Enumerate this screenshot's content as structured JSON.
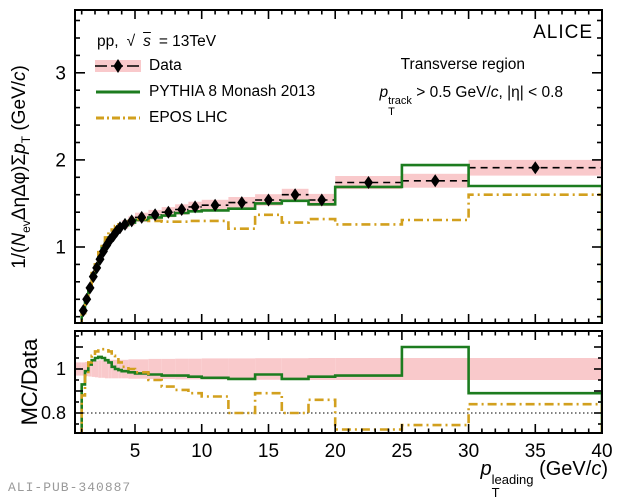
{
  "watermark": "ALI-PUB-340887",
  "annotations": {
    "experiment": "ALICE",
    "region": "Transverse region",
    "cut": {
      "p": "p",
      "sub": "T",
      "sup": "track",
      "rest": " > 0.5 GeV/",
      "c": "c",
      "eta": ", |η| < 0.8"
    }
  },
  "legend": {
    "collision_pre": "pp, ",
    "sqrt": "√",
    "s": "s",
    "collision_rest": " = 13TeV",
    "entries": [
      {
        "label": "Data",
        "type": "data"
      },
      {
        "label": "PYTHIA 8 Monash 2013",
        "type": "pythia"
      },
      {
        "label": "EPOS LHC",
        "type": "epos"
      }
    ]
  },
  "axes": {
    "ylabel": {
      "pre": "1/(",
      "N": "N",
      "ev": "ev",
      "mid": "ΔηΔφ)Σ",
      "p": "p",
      "T": "T",
      "unit": " (GeV/",
      "c": "c",
      "close": ")"
    },
    "ratio_ylabel": "MC/Data",
    "xlabel": {
      "p": "p",
      "sub": "T",
      "sup": "leading",
      "unit": " (GeV/",
      "c": "c",
      "close": ")"
    }
  },
  "colors": {
    "data": "#000000",
    "band": "#f9c9cb",
    "pythia": "#1c7c1f",
    "epos": "#d2a01e"
  },
  "chart_data": {
    "type": "line",
    "title": "",
    "xlabel": "pT_leading (GeV/c)",
    "ylabel_top": "1/(Nev DeltaEta DeltaPhi) Sum pT (GeV/c)",
    "ylabel_bottom": "MC/Data",
    "legend_position": "top-left",
    "grid": false,
    "x_range": [
      0.5,
      40
    ],
    "y_range_top": [
      0.13,
      3.72
    ],
    "y_range_bottom": [
      0.71,
      1.17
    ],
    "x_ticks_major": [
      5,
      10,
      15,
      20,
      25,
      30,
      35,
      40
    ],
    "x_tick_labels": [
      "5",
      "10",
      "15",
      "20",
      "25",
      "30",
      "35",
      "40"
    ],
    "y_ticks_major_top": [
      1,
      2,
      3
    ],
    "y_tick_labels_top": [
      "1",
      "2",
      "3"
    ],
    "y_ticks_major_bottom": [
      0.8,
      0.9,
      1.0,
      1.1
    ],
    "y_tick_labels_bottom": [
      {
        "v": 0.8,
        "label": "0.8"
      },
      {
        "v": 1,
        "label": "1"
      }
    ],
    "bin_edges": [
      0.5,
      1.0,
      1.25,
      1.5,
      1.75,
      2.0,
      2.25,
      2.5,
      2.75,
      3.0,
      3.25,
      3.5,
      3.75,
      4.0,
      4.5,
      5.0,
      6.0,
      7.0,
      8.0,
      9.0,
      10.0,
      12.0,
      14.0,
      16.0,
      18.0,
      20.0,
      25.0,
      30.0,
      40.0
    ],
    "series": [
      {
        "name": "Data",
        "values": [
          0.12,
          0.27,
          0.4,
          0.53,
          0.66,
          0.76,
          0.86,
          0.95,
          1.02,
          1.08,
          1.13,
          1.18,
          1.22,
          1.26,
          1.3,
          1.34,
          1.37,
          1.4,
          1.43,
          1.46,
          1.48,
          1.51,
          1.54,
          1.6,
          1.54,
          1.74,
          1.76,
          1.91
        ],
        "syst_halfwidth": [
          0.008,
          0.015,
          0.02,
          0.025,
          0.03,
          0.032,
          0.035,
          0.038,
          0.04,
          0.042,
          0.044,
          0.046,
          0.048,
          0.05,
          0.052,
          0.054,
          0.056,
          0.058,
          0.06,
          0.06,
          0.062,
          0.064,
          0.066,
          0.068,
          0.07,
          0.075,
          0.08,
          0.09
        ]
      },
      {
        "name": "PYTHIA 8 Monash 2013",
        "values": [
          0.08,
          0.25,
          0.4,
          0.54,
          0.69,
          0.8,
          0.91,
          1.0,
          1.06,
          1.11,
          1.14,
          1.18,
          1.21,
          1.25,
          1.28,
          1.31,
          1.34,
          1.36,
          1.39,
          1.41,
          1.42,
          1.44,
          1.5,
          1.53,
          1.49,
          1.69,
          1.94,
          1.7
        ]
      },
      {
        "name": "EPOS LHC",
        "values": [
          0.07,
          0.24,
          0.39,
          0.55,
          0.7,
          0.82,
          0.94,
          1.04,
          1.11,
          1.17,
          1.2,
          1.24,
          1.26,
          1.27,
          1.3,
          1.32,
          1.3,
          1.29,
          1.29,
          1.3,
          1.3,
          1.21,
          1.37,
          1.28,
          1.32,
          1.26,
          1.31,
          1.6
        ]
      }
    ],
    "ratio": {
      "band_halfwidth": [
        0.03,
        0.03,
        0.032,
        0.034,
        0.036,
        0.038,
        0.04,
        0.04,
        0.042,
        0.042,
        0.042,
        0.042,
        0.042,
        0.042,
        0.044,
        0.044,
        0.046,
        0.046,
        0.047,
        0.047,
        0.048,
        0.048,
        0.049,
        0.049,
        0.05,
        0.05,
        0.05,
        0.05
      ],
      "pythia": [
        0.65,
        0.93,
        0.99,
        1.02,
        1.04,
        1.05,
        1.055,
        1.05,
        1.04,
        1.03,
        1.01,
        1.0,
        0.995,
        0.99,
        0.985,
        0.98,
        0.975,
        0.97,
        0.97,
        0.965,
        0.96,
        0.955,
        0.975,
        0.955,
        0.965,
        0.97,
        1.1,
        0.89
      ],
      "epos": [
        0.55,
        0.88,
        0.97,
        1.03,
        1.06,
        1.08,
        1.09,
        1.09,
        1.085,
        1.08,
        1.06,
        1.05,
        1.03,
        1.01,
        1.0,
        0.985,
        0.95,
        0.92,
        0.905,
        0.89,
        0.875,
        0.8,
        0.89,
        0.8,
        0.86,
        0.725,
        0.745,
        0.84
      ],
      "reference_line": 0.8
    }
  }
}
